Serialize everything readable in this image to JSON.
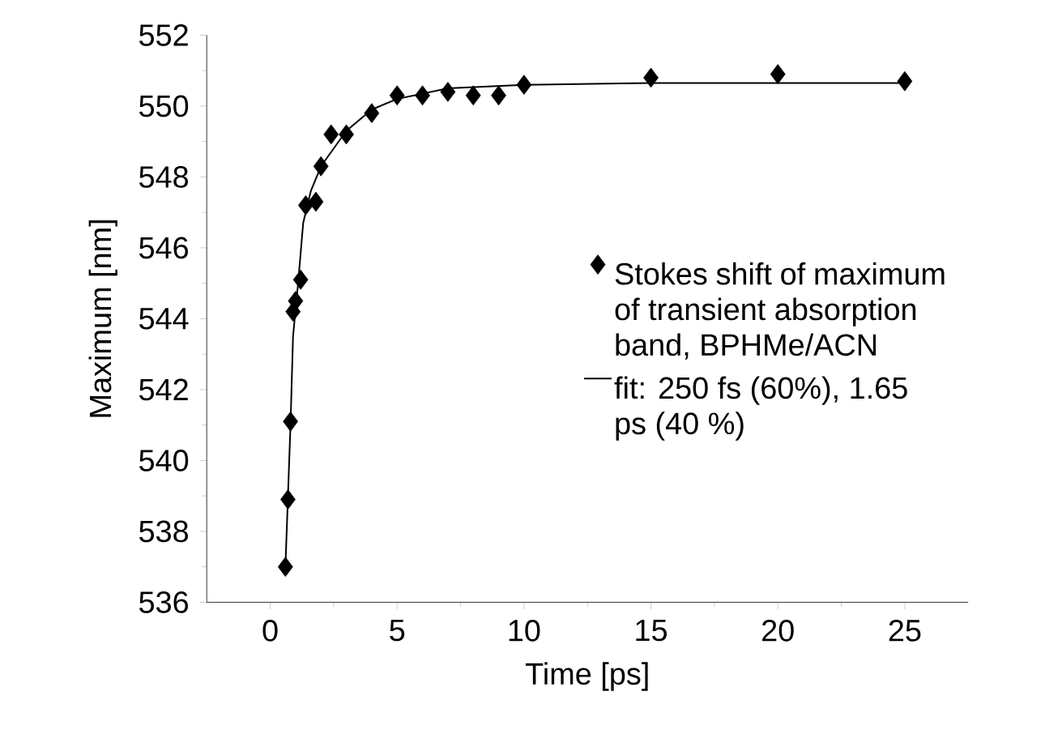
{
  "chart_data": {
    "type": "scatter",
    "xlabel": "Time [ps]",
    "ylabel": "Maximum [nm]",
    "xlim": [
      -2.5,
      27.5
    ],
    "xticks": [
      0,
      5,
      10,
      15,
      20,
      25
    ],
    "ylim": [
      536,
      552
    ],
    "yticks": [
      536,
      538,
      540,
      542,
      544,
      546,
      548,
      550,
      552
    ],
    "legend": "right",
    "grid": false,
    "series": [
      {
        "name": "Stokes shift of maximum of transient absorption band, BPHMe/ACN",
        "marker": "diamond",
        "color": "#000000",
        "x": [
          0.6,
          0.7,
          0.8,
          0.9,
          1.0,
          1.2,
          1.4,
          1.8,
          2.0,
          2.4,
          3.0,
          4.0,
          5.0,
          6.0,
          7.0,
          8.0,
          9.0,
          10.0,
          15.0,
          20.0,
          25.0
        ],
        "values": [
          537.0,
          538.9,
          541.1,
          544.2,
          544.5,
          545.1,
          547.2,
          547.3,
          548.3,
          549.2,
          549.2,
          549.8,
          550.3,
          550.3,
          550.4,
          550.3,
          550.3,
          550.6,
          550.8,
          550.9,
          550.7
        ]
      },
      {
        "name": "fit: 250 fs (60%), 1.65 ps (40 %)",
        "type": "line",
        "line_style": "solid",
        "color": "#000000",
        "x": [
          0.6,
          0.7,
          0.8,
          0.9,
          1.1,
          1.3,
          1.6,
          2.0,
          3.0,
          4.0,
          5.0,
          7.0,
          10.0,
          15.0,
          25.0
        ],
        "values": [
          537.0,
          539.0,
          541.0,
          543.5,
          545.0,
          546.7,
          547.6,
          548.3,
          549.3,
          549.9,
          550.2,
          550.5,
          550.6,
          550.65,
          550.65
        ]
      }
    ]
  }
}
